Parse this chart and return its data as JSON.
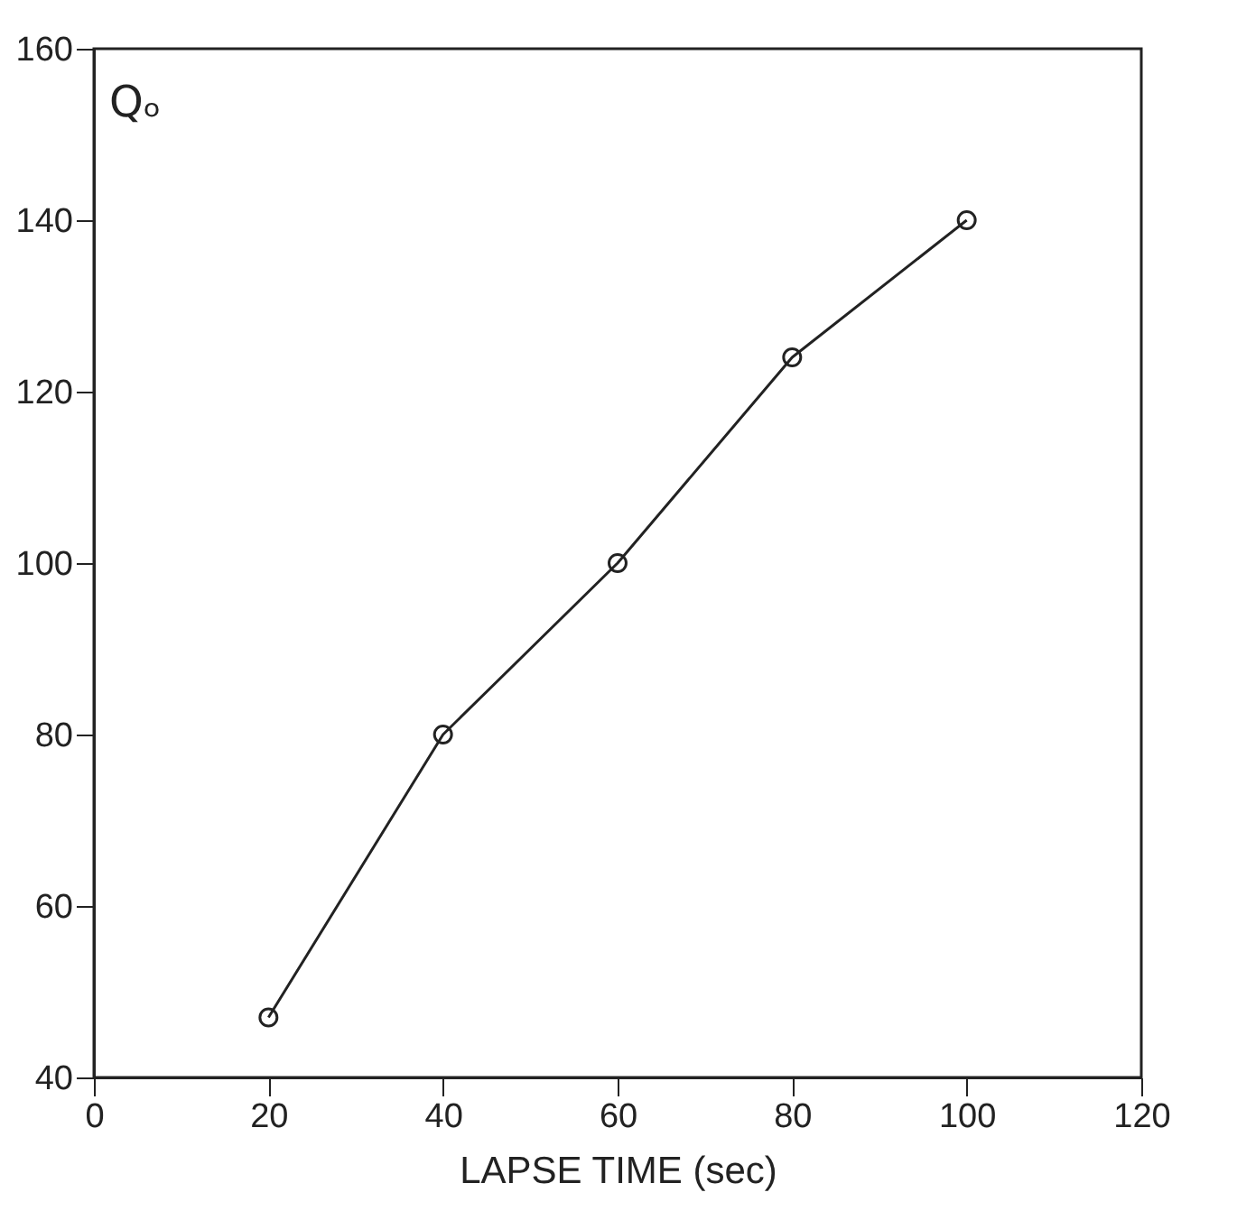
{
  "chart_data": {
    "type": "line",
    "xlabel": "LAPSE TIME (sec)",
    "ylabel": "Qₒ",
    "x": [
      20,
      40,
      60,
      80,
      100
    ],
    "series": [
      {
        "color": "#222222",
        "values": [
          47,
          80,
          100,
          124,
          140
        ]
      }
    ],
    "xlim": [
      0,
      120
    ],
    "xticks": [
      0,
      20,
      40,
      60,
      80,
      100,
      120
    ],
    "ylim": [
      40,
      160
    ],
    "yticks": [
      40,
      60,
      80,
      100,
      120,
      140,
      160
    ],
    "grid": false,
    "legend": false,
    "marker": "circle",
    "line_style": "solid"
  }
}
